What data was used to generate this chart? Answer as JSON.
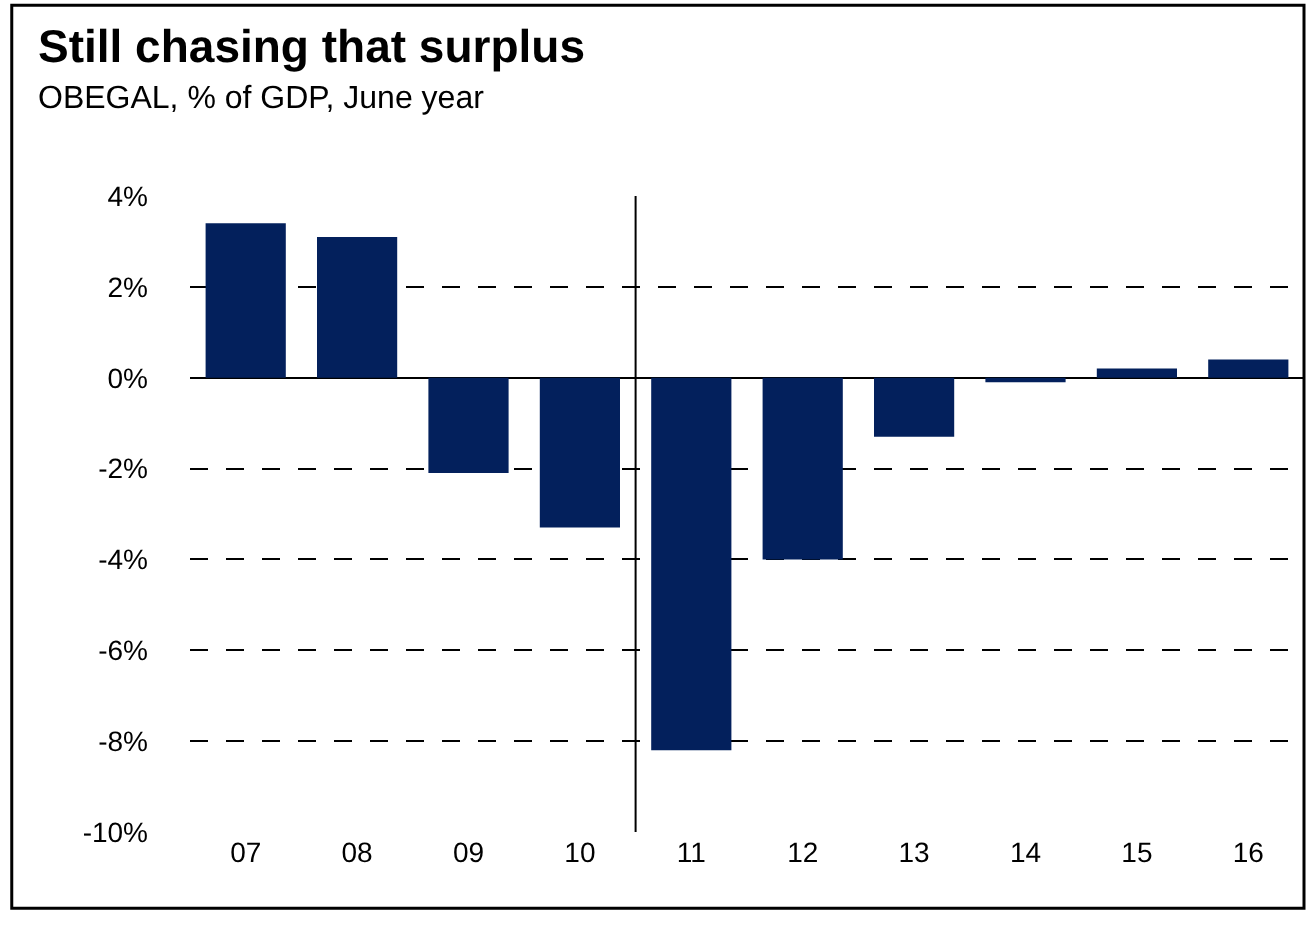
{
  "chart_data": {
    "type": "bar",
    "title": "Still chasing that surplus",
    "subtitle": "OBEGAL, % of GDP, June year",
    "x": [
      2007,
      2008,
      2009,
      2010,
      2011,
      2012,
      2013,
      2014,
      2015,
      2016
    ],
    "values": [
      3.4,
      3.1,
      -2.1,
      -3.3,
      -8.2,
      -4.0,
      -1.3,
      -0.1,
      0.2,
      0.4
    ],
    "color": "#03205c",
    "xlim": [
      2006.5,
      2016.5
    ],
    "xticks": [
      {
        "value": 2007,
        "label": "07"
      },
      {
        "value": 2008,
        "label": "08"
      },
      {
        "value": 2009,
        "label": "09"
      },
      {
        "value": 2010,
        "label": "10"
      },
      {
        "value": 2011,
        "label": "11"
      },
      {
        "value": 2012,
        "label": "12"
      },
      {
        "value": 2013,
        "label": "13"
      },
      {
        "value": 2014,
        "label": "14"
      },
      {
        "value": 2015,
        "label": "15"
      },
      {
        "value": 2016,
        "label": "16"
      }
    ],
    "ylim": [
      -10,
      4
    ],
    "yticks": [
      {
        "value": -10,
        "label": "-10%"
      },
      {
        "value": -8,
        "label": "-8%"
      },
      {
        "value": -6,
        "label": "-6%"
      },
      {
        "value": -4,
        "label": "-4%"
      },
      {
        "value": -2,
        "label": "-2%"
      },
      {
        "value": 0,
        "label": "0%"
      },
      {
        "value": 2,
        "label": "2%"
      },
      {
        "value": 4,
        "label": "4%"
      }
    ],
    "ref_lines": [
      {
        "axis": "x",
        "value": 2010.5,
        "color": "#000000",
        "line_style": "solid"
      }
    ],
    "grid": "y"
  }
}
